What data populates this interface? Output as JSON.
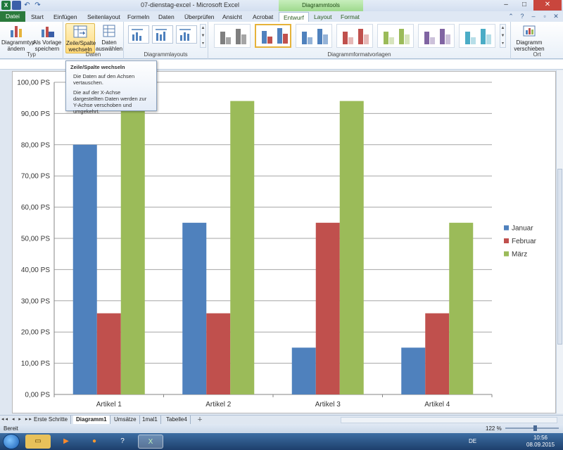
{
  "window": {
    "title": "07-dienstag-excel - Microsoft Excel",
    "context_tools_header": "Diagrammtools"
  },
  "tabs": [
    "Datei",
    "Start",
    "Einfügen",
    "Seitenlayout",
    "Formeln",
    "Daten",
    "Überprüfen",
    "Ansicht",
    "Acrobat",
    "Entwurf",
    "Layout",
    "Format"
  ],
  "ribbon": {
    "typ": {
      "label": "Typ",
      "change_type": "Diagrammtyp ändern",
      "save_template": "Als Vorlage speichern"
    },
    "daten": {
      "label": "Daten",
      "switch_row_col": "Zeile/Spalte wechseln",
      "select_data": "Daten auswählen"
    },
    "layouts": {
      "label": "Diagrammlayouts"
    },
    "styles": {
      "label": "Diagrammformatvorlagen"
    },
    "ort": {
      "label": "Ort",
      "move_chart": "Diagramm verschieben"
    }
  },
  "tooltip": {
    "title": "Zeile/Spalte wechseln",
    "line1": "Die Daten auf den Achsen vertauschen.",
    "line2": "Die auf der X-Achse dargestellten Daten werden zur Y-Achse verschoben und umgekehrt."
  },
  "chart_data": {
    "type": "bar",
    "categories": [
      "Artikel 1",
      "Artikel 2",
      "Artikel 3",
      "Artikel 4"
    ],
    "series": [
      {
        "name": "Januar",
        "values": [
          80,
          55,
          15,
          15
        ],
        "color": "#4f81bd"
      },
      {
        "name": "Februar",
        "values": [
          26,
          26,
          55,
          26
        ],
        "color": "#c0504d"
      },
      {
        "name": "März",
        "values": [
          94,
          94,
          94,
          55
        ],
        "color": "#9bbb59"
      }
    ],
    "y_tick_labels": [
      "0,00 PS",
      "10,00 PS",
      "20,00 PS",
      "30,00 PS",
      "40,00 PS",
      "50,00 PS",
      "60,00 PS",
      "70,00 PS",
      "80,00 PS",
      "90,00 PS",
      "100,00 PS"
    ],
    "ylim": [
      0,
      100
    ],
    "y_step": 10,
    "grid": true,
    "legend": "right"
  },
  "sheets": [
    "Erste Schritte",
    "Diagramm1",
    "Umsätze",
    "1mal1",
    "Tabelle4"
  ],
  "active_sheet": "Diagramm1",
  "status": {
    "text": "Bereit",
    "zoom": "122 %"
  },
  "taskbar": {
    "language": "DE",
    "time": "10:56",
    "date": "08.09.2015"
  }
}
